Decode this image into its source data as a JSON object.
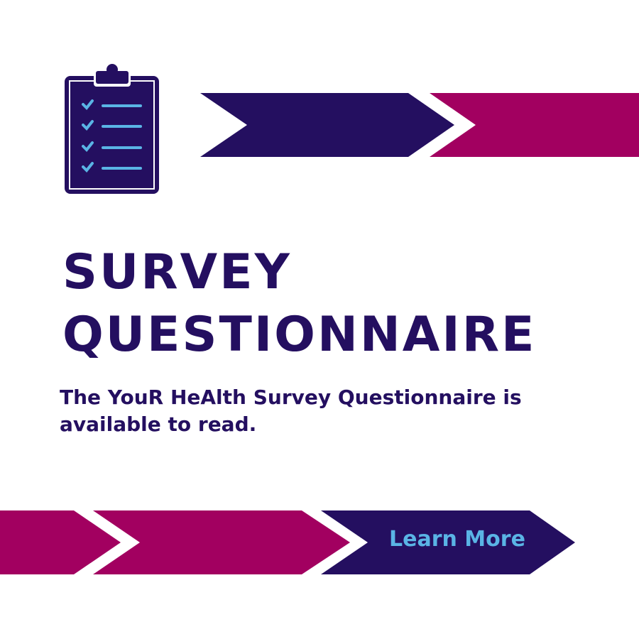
{
  "title_line1": "SURVEY",
  "title_line2": "QUESTIONNAIRE",
  "subtitle": "The YouR HeAlth Survey Questionnaire is available to read.",
  "cta_label": "Learn More",
  "icon": "clipboard-checklist-icon",
  "colors": {
    "navy": "#240f60",
    "magenta": "#a20060",
    "light_blue": "#5ab4e5"
  }
}
